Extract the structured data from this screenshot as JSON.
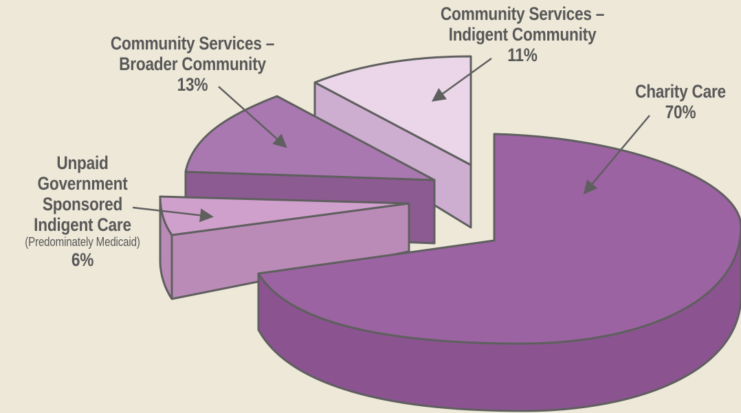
{
  "chart_data": {
    "type": "pie",
    "title": "",
    "slices": [
      {
        "label_lines": [
          "Charity Care"
        ],
        "note": "",
        "value": 70,
        "value_label": "70%",
        "color": "#9b63a1"
      },
      {
        "label_lines": [
          "Unpaid",
          "Government",
          "Sponsored",
          "Indigent Care"
        ],
        "note": "(Predominately Medicaid)",
        "value": 6,
        "value_label": "6%",
        "color": "#d0a0cc"
      },
      {
        "label_lines": [
          "Community Services –",
          "Broader Community"
        ],
        "note": "",
        "value": 13,
        "value_label": "13%",
        "color": "#a978b0"
      },
      {
        "label_lines": [
          "Community Services –",
          "Indigent Community"
        ],
        "note": "",
        "value": 11,
        "value_label": "11%",
        "color": "#ead6e8"
      }
    ],
    "legend": "none",
    "style": "3d exploded"
  },
  "colors": {
    "background": "#ede8d8",
    "label_text": "#585858",
    "outline": "#5f5f5f"
  }
}
